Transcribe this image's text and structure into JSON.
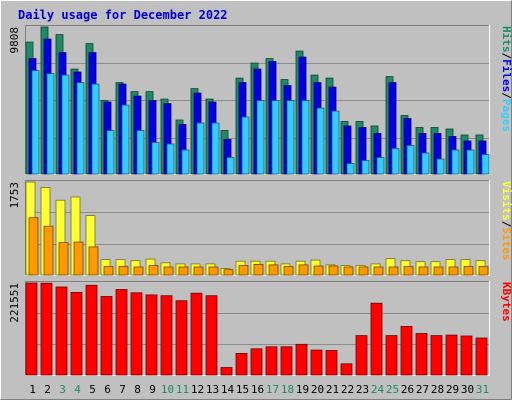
{
  "chart_data": {
    "type": "bar",
    "title": "Daily usage for December 2022",
    "days": [
      1,
      2,
      3,
      4,
      5,
      6,
      7,
      8,
      9,
      10,
      11,
      12,
      13,
      14,
      15,
      16,
      17,
      18,
      19,
      20,
      21,
      22,
      23,
      24,
      25,
      26,
      27,
      28,
      29,
      30,
      31
    ],
    "weekend_days": [
      3,
      4,
      10,
      11,
      17,
      18,
      24,
      25,
      31
    ],
    "colors": {
      "hits": "#1e8a6a",
      "files": "#0000e0",
      "pages": "#33ccff",
      "visits": "#ffff33",
      "sites": "#ff9900",
      "kbytes": "#ff0000",
      "title": "#0000cc",
      "day_weekday": "#000000",
      "day_weekend": "#1e8a6a",
      "background": "#c0c0c0"
    },
    "panels": [
      {
        "id": "hits-files-pages",
        "max_label": "9808",
        "max_value": 9808,
        "legend": [
          {
            "text": "Hits",
            "color_key": "hits"
          },
          {
            "text": "/",
            "color_key": "separator"
          },
          {
            "text": "Files",
            "color_key": "files"
          },
          {
            "text": "/",
            "color_key": "separator"
          },
          {
            "text": "Pages",
            "color_key": "pages"
          }
        ],
        "series": [
          {
            "name": "Hits",
            "color_key": "hits",
            "values": [
              8800,
              9808,
              9300,
              7000,
              8700,
              4900,
              6100,
              5500,
              5500,
              5000,
              3600,
              5700,
              5000,
              2900,
              6400,
              7400,
              7700,
              6300,
              8200,
              6600,
              6400,
              3500,
              3500,
              3200,
              6500,
              3900,
              3100,
              3100,
              3000,
              2600,
              2600
            ]
          },
          {
            "name": "Files",
            "color_key": "files",
            "values": [
              7700,
              9000,
              8100,
              6800,
              8100,
              4800,
              6000,
              5200,
              4900,
              4700,
              3300,
              5400,
              4800,
              2300,
              6100,
              7000,
              7500,
              5900,
              7800,
              6100,
              5800,
              3200,
              3100,
              2700,
              6100,
              3700,
              2700,
              2700,
              2500,
              2200,
              2200
            ]
          },
          {
            "name": "Pages",
            "color_key": "pages",
            "values": [
              6900,
              6700,
              6600,
              6100,
              6000,
              2900,
              4600,
              2900,
              2100,
              2000,
              1600,
              3400,
              3400,
              1100,
              3800,
              4900,
              4900,
              4900,
              4900,
              4400,
              4200,
              700,
              900,
              1100,
              1700,
              1900,
              1400,
              1000,
              1600,
              1600,
              1300
            ]
          }
        ]
      },
      {
        "id": "visits-sites",
        "max_label": "1753",
        "max_value": 1753,
        "legend": [
          {
            "text": "Visits",
            "color_key": "visits"
          },
          {
            "text": "/",
            "color_key": "separator"
          },
          {
            "text": "Sites",
            "color_key": "sites"
          }
        ],
        "series": [
          {
            "name": "Visits",
            "color_key": "visits",
            "values": [
              1753,
              1650,
              1410,
              1470,
              1120,
              290,
              290,
              270,
              300,
              230,
              210,
              210,
              210,
              120,
              260,
              260,
              260,
              210,
              260,
              280,
              190,
              180,
              180,
              210,
              310,
              270,
              250,
              250,
              290,
              290,
              270
            ]
          },
          {
            "name": "Sites",
            "color_key": "sites",
            "values": [
              1080,
              920,
              610,
              620,
              530,
              160,
              160,
              150,
              180,
              150,
              150,
              150,
              150,
              100,
              180,
              200,
              190,
              160,
              190,
              170,
              170,
              150,
              150,
              150,
              150,
              160,
              150,
              150,
              150,
              160,
              160
            ]
          }
        ]
      },
      {
        "id": "kbytes",
        "max_label": "221551",
        "max_value": 221551,
        "legend": [
          {
            "text": "KBytes",
            "color_key": "kbytes"
          }
        ],
        "series": [
          {
            "name": "KBytes",
            "color_key": "kbytes",
            "values": [
              221551,
              221000,
              212000,
              199000,
              216000,
              189000,
              206000,
              198000,
              193000,
              191000,
              179000,
              197000,
              191000,
              18000,
              52000,
              63000,
              68000,
              68000,
              74000,
              60000,
              59000,
              27000,
              95000,
              173000,
              95000,
              117000,
              100000,
              95000,
              96000,
              94000,
              89000
            ]
          }
        ]
      }
    ]
  }
}
